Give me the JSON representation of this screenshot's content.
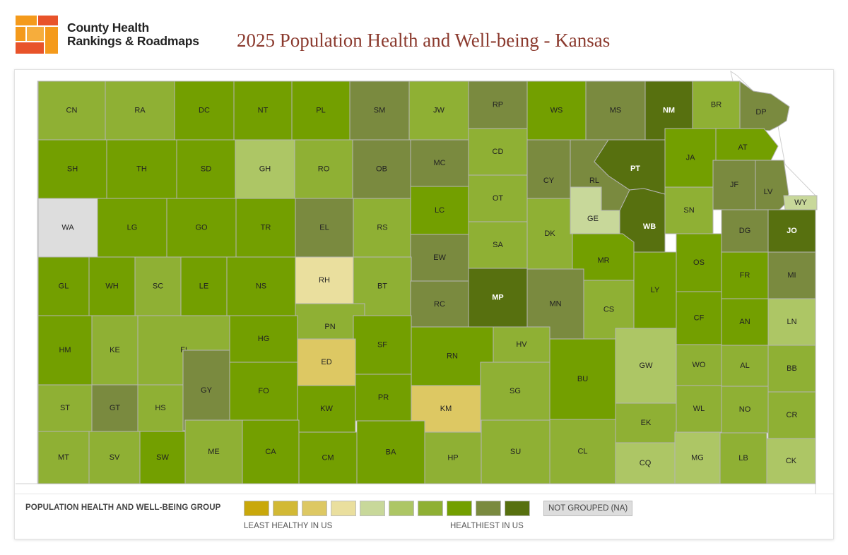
{
  "header": {
    "logo_line1": "County Health",
    "logo_line2": "Rankings & Roadmaps",
    "title": "2025 Population Health and Well-being - Kansas"
  },
  "colors": {
    "g1": "#c9a80b",
    "g2": "#d2b935",
    "g3": "#ddc863",
    "g4": "#eadf9e",
    "g5": "#c8d89a",
    "g6": "#adc665",
    "g7": "#8fb034",
    "g8": "#739f00",
    "g9": "#7a8a3f",
    "g10": "#57700f",
    "na": "#dddddd"
  },
  "legend": {
    "title": "POPULATION HEALTH AND WELL-BEING GROUP",
    "least": "LEAST HEALTHY IN US",
    "healthiest": "HEALTHIEST IN US",
    "na_label": "NOT GROUPED (NA)",
    "groups": [
      "g1",
      "g2",
      "g3",
      "g4",
      "g5",
      "g6",
      "g7",
      "g8",
      "g9",
      "g10"
    ]
  },
  "counties": [
    {
      "label": "CN",
      "group": "g7"
    },
    {
      "label": "RA",
      "group": "g7"
    },
    {
      "label": "DC",
      "group": "g8"
    },
    {
      "label": "NT",
      "group": "g8"
    },
    {
      "label": "PL",
      "group": "g8"
    },
    {
      "label": "SM",
      "group": "g9"
    },
    {
      "label": "JW",
      "group": "g7"
    },
    {
      "label": "RP",
      "group": "g9"
    },
    {
      "label": "WS",
      "group": "g8"
    },
    {
      "label": "MS",
      "group": "g9"
    },
    {
      "label": "NM",
      "group": "g10"
    },
    {
      "label": "BR",
      "group": "g7"
    },
    {
      "label": "DP",
      "group": "g9"
    },
    {
      "label": "SH",
      "group": "g8"
    },
    {
      "label": "TH",
      "group": "g8"
    },
    {
      "label": "SD",
      "group": "g8"
    },
    {
      "label": "GH",
      "group": "g6"
    },
    {
      "label": "RO",
      "group": "g7"
    },
    {
      "label": "OB",
      "group": "g9"
    },
    {
      "label": "MC",
      "group": "g9"
    },
    {
      "label": "CD",
      "group": "g7"
    },
    {
      "label": "CY",
      "group": "g9"
    },
    {
      "label": "RL",
      "group": "g9"
    },
    {
      "label": "PT",
      "group": "g10"
    },
    {
      "label": "JA",
      "group": "g8"
    },
    {
      "label": "AT",
      "group": "g8"
    },
    {
      "label": "JF",
      "group": "g9"
    },
    {
      "label": "LV",
      "group": "g9"
    },
    {
      "label": "WY",
      "group": "g5"
    },
    {
      "label": "WA",
      "group": "na"
    },
    {
      "label": "LG",
      "group": "g8"
    },
    {
      "label": "GO",
      "group": "g8"
    },
    {
      "label": "TR",
      "group": "g8"
    },
    {
      "label": "EL",
      "group": "g9"
    },
    {
      "label": "RS",
      "group": "g7"
    },
    {
      "label": "LC",
      "group": "g8"
    },
    {
      "label": "OT",
      "group": "g7"
    },
    {
      "label": "DK",
      "group": "g7"
    },
    {
      "label": "GE",
      "group": "g5"
    },
    {
      "label": "WB",
      "group": "g10"
    },
    {
      "label": "SN",
      "group": "g7"
    },
    {
      "label": "DG",
      "group": "g9"
    },
    {
      "label": "JO",
      "group": "g10"
    },
    {
      "label": "SA",
      "group": "g7"
    },
    {
      "label": "EW",
      "group": "g9"
    },
    {
      "label": "MR",
      "group": "g8"
    },
    {
      "label": "OS",
      "group": "g8"
    },
    {
      "label": "GL",
      "group": "g8"
    },
    {
      "label": "WH",
      "group": "g8"
    },
    {
      "label": "SC",
      "group": "g7"
    },
    {
      "label": "LE",
      "group": "g8"
    },
    {
      "label": "NS",
      "group": "g8"
    },
    {
      "label": "RH",
      "group": "g4"
    },
    {
      "label": "BT",
      "group": "g7"
    },
    {
      "label": "RC",
      "group": "g9"
    },
    {
      "label": "MP",
      "group": "g10"
    },
    {
      "label": "MN",
      "group": "g9"
    },
    {
      "label": "LY",
      "group": "g8"
    },
    {
      "label": "FR",
      "group": "g8"
    },
    {
      "label": "MI",
      "group": "g9"
    },
    {
      "label": "CS",
      "group": "g7"
    },
    {
      "label": "CF",
      "group": "g8"
    },
    {
      "label": "AN",
      "group": "g8"
    },
    {
      "label": "LN",
      "group": "g6"
    },
    {
      "label": "PN",
      "group": "g7"
    },
    {
      "label": "HM",
      "group": "g8"
    },
    {
      "label": "KE",
      "group": "g7"
    },
    {
      "label": "FI",
      "group": "g7"
    },
    {
      "label": "HG",
      "group": "g8"
    },
    {
      "label": "SF",
      "group": "g8"
    },
    {
      "label": "RN",
      "group": "g8"
    },
    {
      "label": "HV",
      "group": "g7"
    },
    {
      "label": "ED",
      "group": "g3"
    },
    {
      "label": "GY",
      "group": "g9"
    },
    {
      "label": "BU",
      "group": "g8"
    },
    {
      "label": "GW",
      "group": "g6"
    },
    {
      "label": "WO",
      "group": "g7"
    },
    {
      "label": "AL",
      "group": "g7"
    },
    {
      "label": "BB",
      "group": "g7"
    },
    {
      "label": "ST",
      "group": "g7"
    },
    {
      "label": "GT",
      "group": "g9"
    },
    {
      "label": "HS",
      "group": "g7"
    },
    {
      "label": "FO",
      "group": "g8"
    },
    {
      "label": "KW",
      "group": "g8"
    },
    {
      "label": "PR",
      "group": "g8"
    },
    {
      "label": "KM",
      "group": "g3"
    },
    {
      "label": "SG",
      "group": "g7"
    },
    {
      "label": "EK",
      "group": "g7"
    },
    {
      "label": "WL",
      "group": "g7"
    },
    {
      "label": "NO",
      "group": "g7"
    },
    {
      "label": "CR",
      "group": "g7"
    },
    {
      "label": "MT",
      "group": "g7"
    },
    {
      "label": "SV",
      "group": "g7"
    },
    {
      "label": "SW",
      "group": "g8"
    },
    {
      "label": "ME",
      "group": "g7"
    },
    {
      "label": "CA",
      "group": "g8"
    },
    {
      "label": "CM",
      "group": "g8"
    },
    {
      "label": "BA",
      "group": "g8"
    },
    {
      "label": "HP",
      "group": "g7"
    },
    {
      "label": "SU",
      "group": "g7"
    },
    {
      "label": "CL",
      "group": "g7"
    },
    {
      "label": "CQ",
      "group": "g6"
    },
    {
      "label": "MG",
      "group": "g6"
    },
    {
      "label": "LB",
      "group": "g7"
    },
    {
      "label": "CK",
      "group": "g6"
    }
  ]
}
